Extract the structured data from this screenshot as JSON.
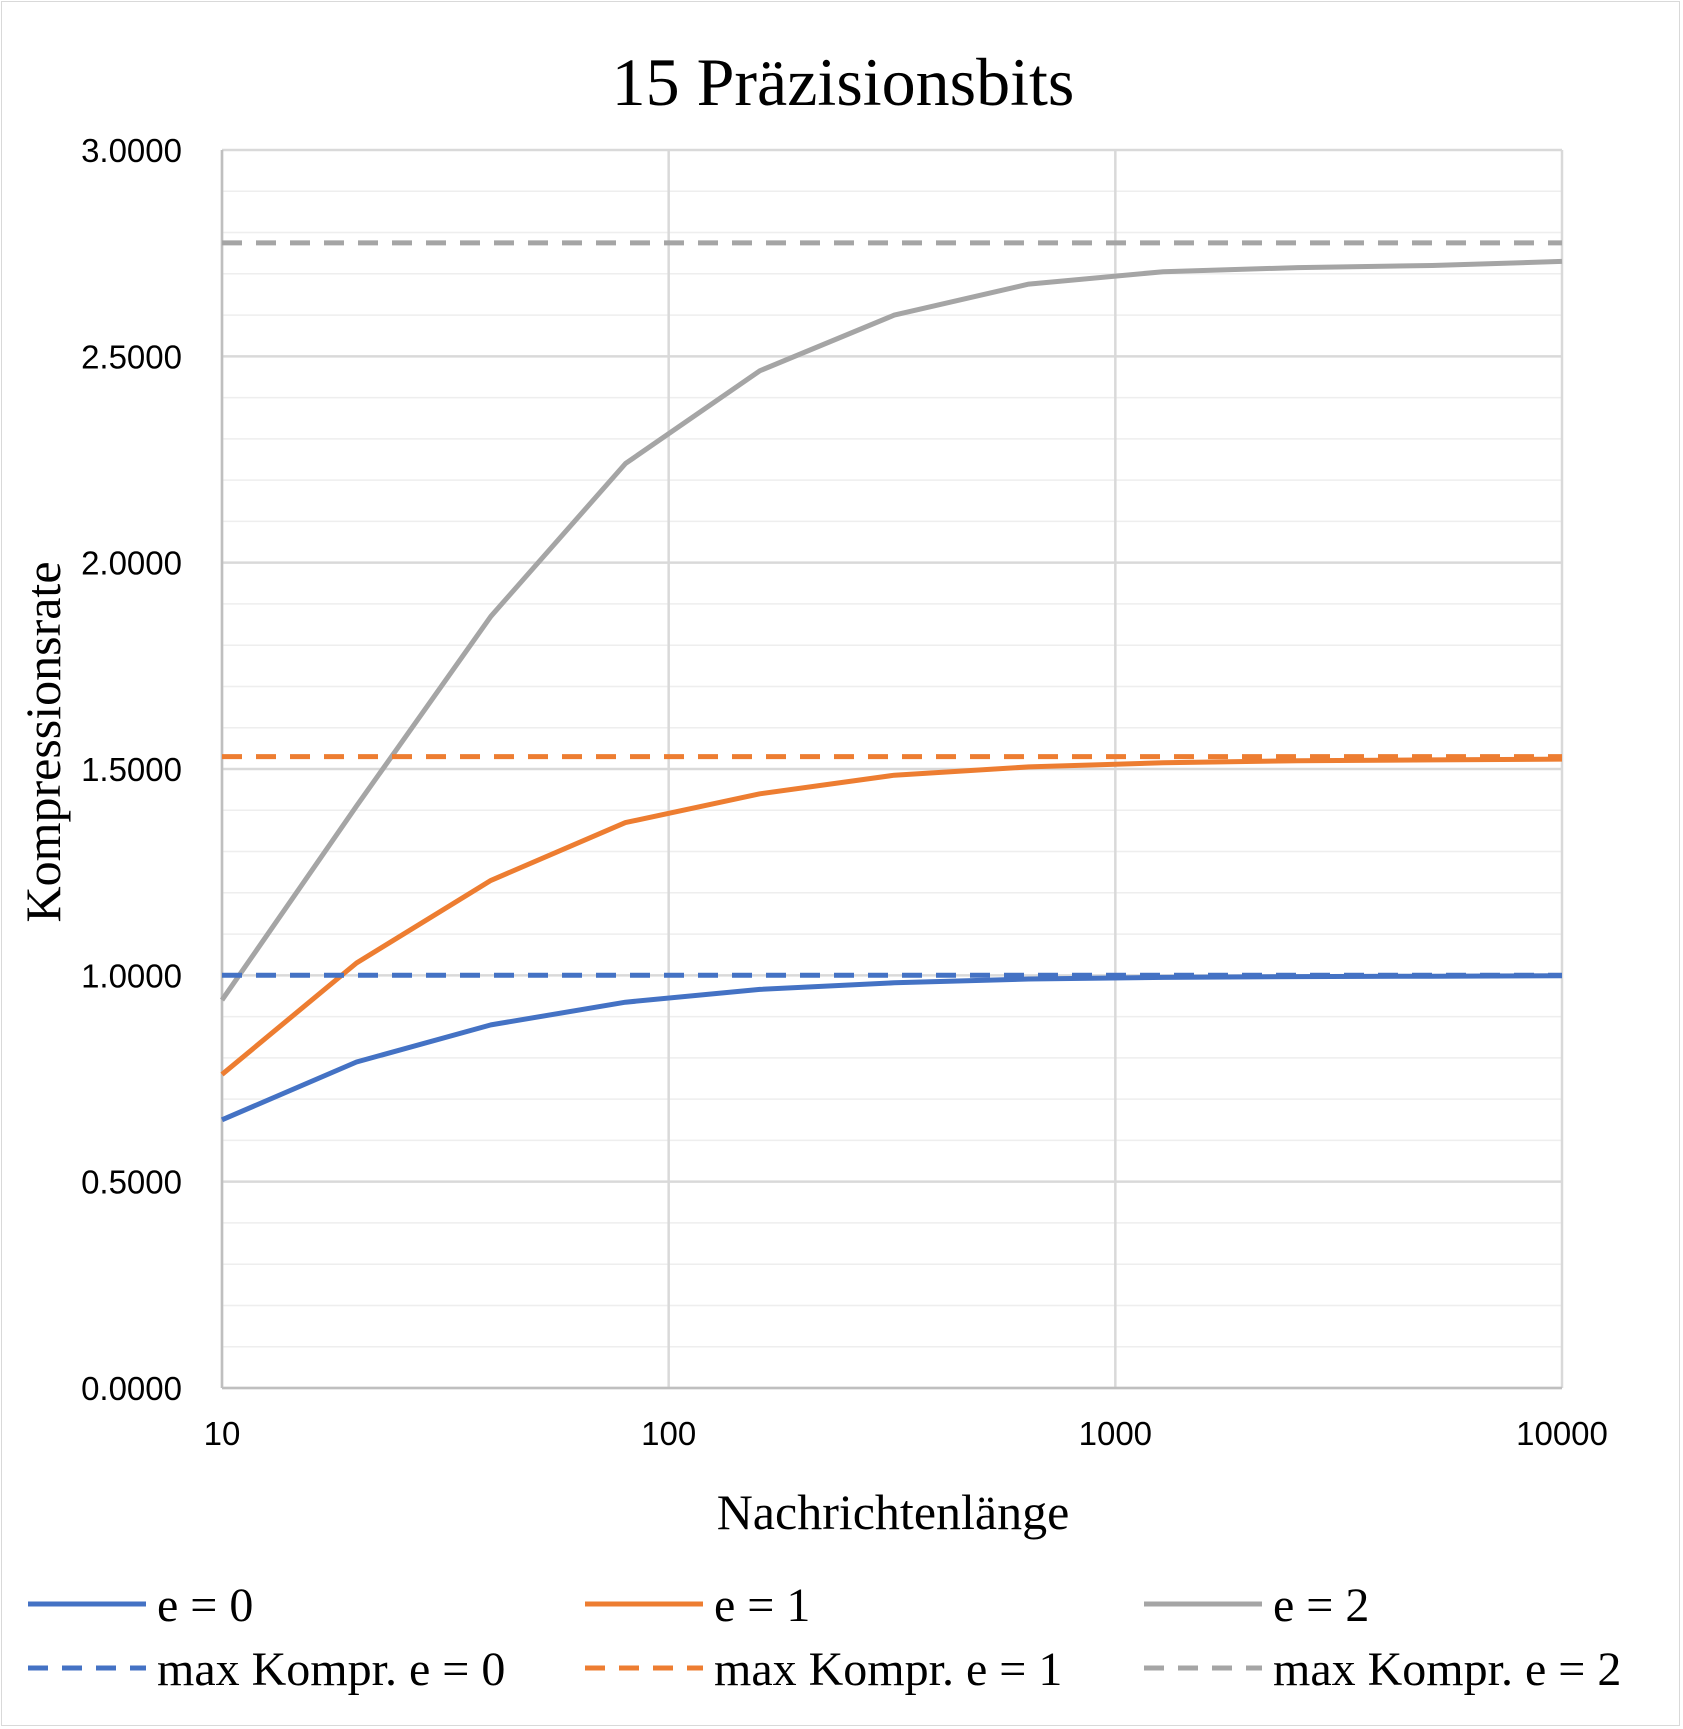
{
  "chart_data": {
    "type": "line",
    "title": "15 Präzisionsbits",
    "xlabel": "Nachrichtenlänge",
    "ylabel": "Kompressionsrate",
    "x_scale": "log",
    "xlim": [
      10,
      10000
    ],
    "ylim": [
      0,
      3
    ],
    "x_ticks": [
      "10",
      "100",
      "1000",
      "10000"
    ],
    "y_ticks": [
      "0.0000",
      "0.5000",
      "1.0000",
      "1.5000",
      "2.0000",
      "2.5000",
      "3.0000"
    ],
    "grid": true,
    "legend_position": "bottom",
    "x": [
      10,
      20,
      40,
      80,
      160,
      320,
      640,
      1280,
      2560,
      5120,
      10000
    ],
    "series": [
      {
        "name": "e = 0",
        "color": "#4472C4",
        "dash": false,
        "values": [
          0.65,
          0.79,
          0.88,
          0.935,
          0.966,
          0.982,
          0.991,
          0.995,
          0.997,
          0.998,
          0.999
        ]
      },
      {
        "name": "e = 1",
        "color": "#ED7D31",
        "dash": false,
        "values": [
          0.76,
          1.03,
          1.23,
          1.37,
          1.44,
          1.485,
          1.505,
          1.515,
          1.52,
          1.522,
          1.524
        ]
      },
      {
        "name": "e = 2",
        "color": "#A5A5A5",
        "dash": false,
        "values": [
          0.94,
          1.41,
          1.87,
          2.24,
          2.465,
          2.6,
          2.675,
          2.705,
          2.715,
          2.72,
          2.73
        ]
      },
      {
        "name": "max Kompr. e = 0",
        "color": "#4472C4",
        "dash": true,
        "values": [
          1.0,
          1.0,
          1.0,
          1.0,
          1.0,
          1.0,
          1.0,
          1.0,
          1.0,
          1.0,
          1.0
        ]
      },
      {
        "name": "max Kompr. e = 1",
        "color": "#ED7D31",
        "dash": true,
        "values": [
          1.53,
          1.53,
          1.53,
          1.53,
          1.53,
          1.53,
          1.53,
          1.53,
          1.53,
          1.53,
          1.53
        ]
      },
      {
        "name": "max Kompr. e = 2",
        "color": "#A5A5A5",
        "dash": true,
        "values": [
          2.775,
          2.775,
          2.775,
          2.775,
          2.775,
          2.775,
          2.775,
          2.775,
          2.775,
          2.775,
          2.775
        ]
      }
    ]
  }
}
